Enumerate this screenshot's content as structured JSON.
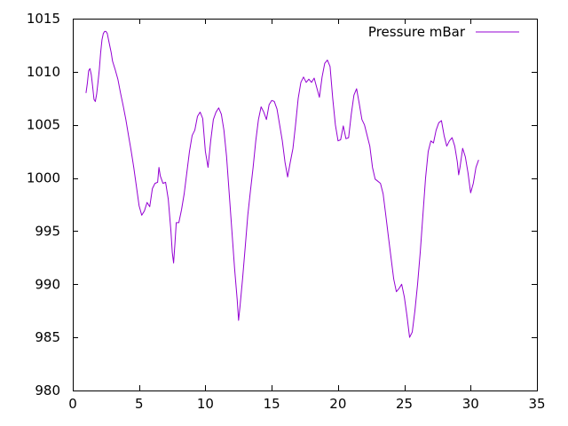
{
  "chart_data": {
    "type": "line",
    "title": "",
    "xlabel": "",
    "ylabel": "",
    "xlim": [
      0,
      35
    ],
    "ylim": [
      980,
      1015
    ],
    "x_ticks": [
      0,
      5,
      10,
      15,
      20,
      25,
      30,
      35
    ],
    "y_ticks": [
      980,
      985,
      990,
      995,
      1000,
      1005,
      1010,
      1015
    ],
    "grid": false,
    "legend_position": "top-right",
    "series": [
      {
        "name": "Pressure mBar",
        "color": "#9400d3",
        "points": [
          [
            1.0,
            1008.0
          ],
          [
            1.1,
            1008.9
          ],
          [
            1.2,
            1010.1
          ],
          [
            1.3,
            1010.3
          ],
          [
            1.4,
            1009.7
          ],
          [
            1.5,
            1008.6
          ],
          [
            1.6,
            1007.4
          ],
          [
            1.7,
            1007.2
          ],
          [
            1.8,
            1007.9
          ],
          [
            1.9,
            1009.0
          ],
          [
            2.0,
            1010.2
          ],
          [
            2.1,
            1011.8
          ],
          [
            2.2,
            1013.0
          ],
          [
            2.3,
            1013.6
          ],
          [
            2.4,
            1013.8
          ],
          [
            2.5,
            1013.8
          ],
          [
            2.6,
            1013.6
          ],
          [
            2.7,
            1013.0
          ],
          [
            2.8,
            1012.4
          ],
          [
            2.9,
            1011.8
          ],
          [
            3.0,
            1011.0
          ],
          [
            3.2,
            1010.2
          ],
          [
            3.4,
            1009.3
          ],
          [
            3.6,
            1008.0
          ],
          [
            3.8,
            1006.8
          ],
          [
            4.0,
            1005.5
          ],
          [
            4.2,
            1004.0
          ],
          [
            4.4,
            1002.6
          ],
          [
            4.6,
            1001.0
          ],
          [
            4.8,
            999.2
          ],
          [
            5.0,
            997.4
          ],
          [
            5.2,
            996.5
          ],
          [
            5.4,
            996.9
          ],
          [
            5.6,
            997.7
          ],
          [
            5.8,
            997.3
          ],
          [
            6.0,
            999.0
          ],
          [
            6.2,
            999.5
          ],
          [
            6.4,
            999.6
          ],
          [
            6.5,
            1001.0
          ],
          [
            6.6,
            1000.2
          ],
          [
            6.8,
            999.5
          ],
          [
            7.0,
            999.6
          ],
          [
            7.2,
            998.0
          ],
          [
            7.4,
            995.0
          ],
          [
            7.5,
            993.0
          ],
          [
            7.6,
            992.0
          ],
          [
            7.7,
            993.8
          ],
          [
            7.8,
            995.8
          ],
          [
            8.0,
            995.8
          ],
          [
            8.2,
            997.0
          ],
          [
            8.4,
            998.5
          ],
          [
            8.6,
            1000.5
          ],
          [
            8.8,
            1002.5
          ],
          [
            9.0,
            1004.0
          ],
          [
            9.2,
            1004.5
          ],
          [
            9.4,
            1005.8
          ],
          [
            9.6,
            1006.2
          ],
          [
            9.8,
            1005.6
          ],
          [
            10.0,
            1002.5
          ],
          [
            10.2,
            1001.0
          ],
          [
            10.4,
            1003.5
          ],
          [
            10.6,
            1005.5
          ],
          [
            10.8,
            1006.2
          ],
          [
            11.0,
            1006.6
          ],
          [
            11.2,
            1006.0
          ],
          [
            11.4,
            1004.5
          ],
          [
            11.6,
            1002.0
          ],
          [
            11.8,
            998.5
          ],
          [
            12.0,
            995.0
          ],
          [
            12.2,
            991.5
          ],
          [
            12.4,
            988.5
          ],
          [
            12.5,
            986.6
          ],
          [
            12.6,
            987.8
          ],
          [
            12.8,
            990.5
          ],
          [
            13.0,
            993.5
          ],
          [
            13.2,
            996.5
          ],
          [
            13.4,
            998.8
          ],
          [
            13.6,
            1001.0
          ],
          [
            13.8,
            1003.5
          ],
          [
            14.0,
            1005.5
          ],
          [
            14.2,
            1006.7
          ],
          [
            14.4,
            1006.2
          ],
          [
            14.6,
            1005.5
          ],
          [
            14.8,
            1006.9
          ],
          [
            15.0,
            1007.3
          ],
          [
            15.2,
            1007.2
          ],
          [
            15.4,
            1006.5
          ],
          [
            15.6,
            1005.0
          ],
          [
            15.8,
            1003.5
          ],
          [
            16.0,
            1001.5
          ],
          [
            16.2,
            1000.1
          ],
          [
            16.4,
            1001.5
          ],
          [
            16.6,
            1002.8
          ],
          [
            16.8,
            1005.0
          ],
          [
            17.0,
            1007.5
          ],
          [
            17.2,
            1009.0
          ],
          [
            17.4,
            1009.5
          ],
          [
            17.6,
            1009.0
          ],
          [
            17.8,
            1009.3
          ],
          [
            18.0,
            1009.0
          ],
          [
            18.2,
            1009.4
          ],
          [
            18.4,
            1008.5
          ],
          [
            18.6,
            1007.6
          ],
          [
            18.8,
            1009.5
          ],
          [
            19.0,
            1010.8
          ],
          [
            19.2,
            1011.1
          ],
          [
            19.4,
            1010.5
          ],
          [
            19.6,
            1007.5
          ],
          [
            19.8,
            1005.0
          ],
          [
            20.0,
            1003.5
          ],
          [
            20.2,
            1003.6
          ],
          [
            20.4,
            1004.9
          ],
          [
            20.6,
            1003.7
          ],
          [
            20.8,
            1003.8
          ],
          [
            21.0,
            1006.0
          ],
          [
            21.2,
            1007.8
          ],
          [
            21.4,
            1008.4
          ],
          [
            21.6,
            1007.0
          ],
          [
            21.8,
            1005.5
          ],
          [
            22.0,
            1005.0
          ],
          [
            22.2,
            1004.0
          ],
          [
            22.4,
            1003.0
          ],
          [
            22.6,
            1001.0
          ],
          [
            22.8,
            999.9
          ],
          [
            23.0,
            999.7
          ],
          [
            23.2,
            999.5
          ],
          [
            23.4,
            998.5
          ],
          [
            23.6,
            996.5
          ],
          [
            23.8,
            994.5
          ],
          [
            24.0,
            992.5
          ],
          [
            24.2,
            990.5
          ],
          [
            24.4,
            989.3
          ],
          [
            24.6,
            989.6
          ],
          [
            24.8,
            990.0
          ],
          [
            25.0,
            988.8
          ],
          [
            25.2,
            987.0
          ],
          [
            25.4,
            985.0
          ],
          [
            25.6,
            985.5
          ],
          [
            25.8,
            987.5
          ],
          [
            26.0,
            990.0
          ],
          [
            26.2,
            993.0
          ],
          [
            26.4,
            996.5
          ],
          [
            26.6,
            1000.0
          ],
          [
            26.8,
            1002.5
          ],
          [
            27.0,
            1003.5
          ],
          [
            27.2,
            1003.3
          ],
          [
            27.4,
            1004.5
          ],
          [
            27.6,
            1005.2
          ],
          [
            27.8,
            1005.4
          ],
          [
            28.0,
            1004.0
          ],
          [
            28.2,
            1003.0
          ],
          [
            28.4,
            1003.5
          ],
          [
            28.6,
            1003.8
          ],
          [
            28.8,
            1003.0
          ],
          [
            29.0,
            1001.5
          ],
          [
            29.1,
            1000.3
          ],
          [
            29.2,
            1001.0
          ],
          [
            29.4,
            1002.8
          ],
          [
            29.6,
            1002.0
          ],
          [
            29.8,
            1000.5
          ],
          [
            30.0,
            998.6
          ],
          [
            30.2,
            999.5
          ],
          [
            30.4,
            1001.0
          ],
          [
            30.6,
            1001.7
          ]
        ]
      }
    ]
  }
}
